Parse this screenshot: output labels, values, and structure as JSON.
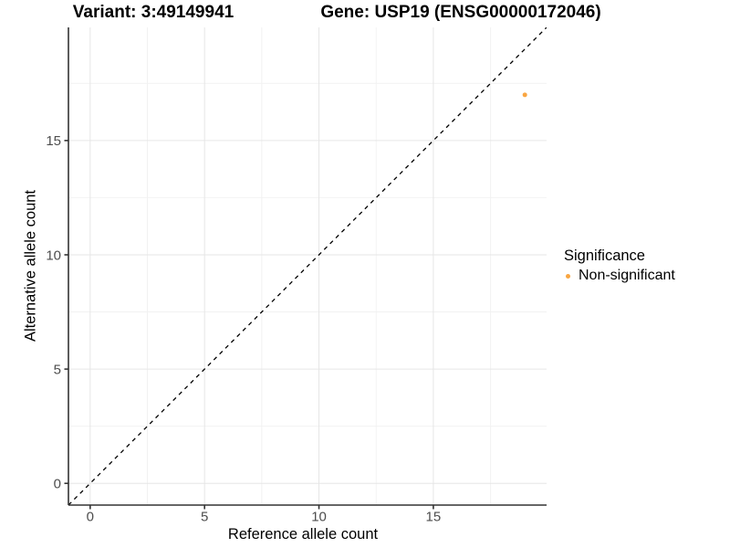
{
  "chart_data": {
    "type": "scatter",
    "titles": {
      "left": "Variant: 3:49149941",
      "right": "Gene: USP19 (ENSG00000172046)"
    },
    "xlabel": "Reference allele count",
    "ylabel": "Alternative allele count",
    "xlim": [
      -0.95,
      19.95
    ],
    "ylim": [
      -0.95,
      19.95
    ],
    "xticks": [
      0,
      5,
      10,
      15
    ],
    "yticks": [
      0,
      5,
      10,
      15
    ],
    "xminor": [
      2.5,
      7.5,
      12.5,
      17.5
    ],
    "yminor": [
      2.5,
      7.5,
      12.5,
      17.5
    ],
    "grid": true,
    "identity_line": {
      "slope": 1,
      "intercept": 0,
      "style": "dashed",
      "color": "#000000"
    },
    "series": [
      {
        "name": "Non-significant",
        "color": "#F9A642",
        "points": [
          {
            "x": 19,
            "y": 17
          }
        ]
      }
    ],
    "legend": {
      "title": "Significance",
      "position": "right",
      "entries": [
        {
          "label": "Non-significant",
          "color": "#F9A642"
        }
      ]
    },
    "colors": {
      "major_grid": "#E6E6E6",
      "minor_grid": "#F2F2F2",
      "axis_line": "#333333",
      "tick_text": "#4D4D4D",
      "background": "#FFFFFF"
    }
  }
}
